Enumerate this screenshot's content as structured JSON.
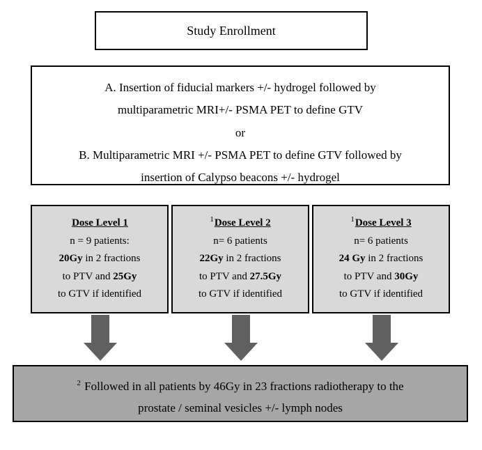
{
  "colors": {
    "background": "#ffffff",
    "box_border": "#000000",
    "dose_fill": "#d9d9d9",
    "followup_fill": "#a6a6a6",
    "arrow_fill": "#606060"
  },
  "typography": {
    "font_family": "Times New Roman",
    "base_size_pt": 17,
    "dose_size_pt": 15
  },
  "enrollment": {
    "title": "Study Enrollment"
  },
  "define_gtv": {
    "lineA1": "A. Insertion of fiducial markers +/- hydrogel followed by",
    "lineA2": "multiparametric MRI+/- PSMA PET  to define GTV",
    "or": "or",
    "lineB1": "B. Multiparametric MRI +/- PSMA PET to define GTV followed by",
    "lineB2": "insertion of Calypso beacons +/- hydrogel"
  },
  "dose_levels": [
    {
      "sup": "",
      "title": "Dose Level 1",
      "n_text_pre": "n = ",
      "n": "9",
      "n_text_post": " patients:",
      "dose_ptv": "20Gy",
      "fractions_text_mid": " in 2 fractions",
      "to_ptv_text": "to PTV and ",
      "dose_gtv": "25Gy",
      "gtv_text": "to GTV if identified"
    },
    {
      "sup": "1",
      "title": "Dose Level 2",
      "n_text_pre": "n= ",
      "n": "6",
      "n_text_post": " patients",
      "dose_ptv": "22Gy",
      "fractions_text_mid": " in 2 fractions",
      "to_ptv_text": "to PTV and ",
      "dose_gtv": "27.5Gy",
      "gtv_text": "to GTV if identified"
    },
    {
      "sup": "1",
      "title": "Dose Level 3",
      "n_text_pre": "n= ",
      "n": "6",
      "n_text_post": " patients",
      "dose_ptv": "24 Gy",
      "fractions_text_mid": " in 2 fractions",
      "to_ptv_text": "to PTV and ",
      "dose_gtv": "30Gy",
      "gtv_text": "to GTV if identified"
    }
  ],
  "followup": {
    "sup": "2",
    "line1": " Followed in all patients by 46Gy in 23 fractions radiotherapy to the",
    "line2": "prostate / seminal vesicles +/- lymph nodes"
  }
}
